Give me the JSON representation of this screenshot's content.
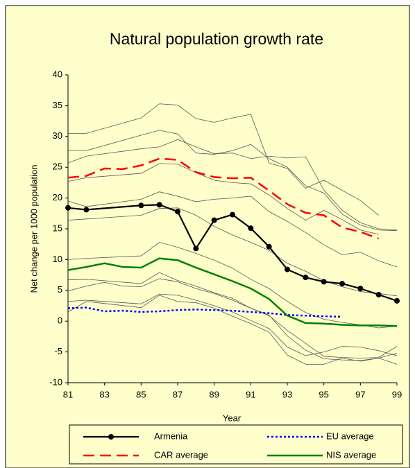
{
  "chart_data": {
    "type": "line",
    "title": "Natural population growth rate",
    "x_label": "Year",
    "y_label": "Net change per 1000 population",
    "xlim": [
      81,
      99
    ],
    "xticks": [
      81,
      83,
      85,
      87,
      89,
      91,
      93,
      95,
      97,
      99
    ],
    "ylim": [
      -10,
      40
    ],
    "yticks": [
      -10,
      -5,
      0,
      5,
      10,
      15,
      20,
      25,
      30,
      35,
      40
    ],
    "grid": false,
    "series": [
      {
        "color": "#555555",
        "width": 0.8,
        "style": "solid",
        "x": [
          81,
          82,
          85,
          86,
          87,
          88,
          89,
          90,
          91,
          92,
          93,
          94,
          95,
          97,
          98
        ],
        "values": [
          30.5,
          30.5,
          33,
          35.3,
          35.1,
          32.9,
          32.3,
          33,
          33.6,
          25.7,
          24.8,
          21.6,
          22.9,
          19.6,
          17.2
        ]
      },
      {
        "color": "#555555",
        "width": 0.8,
        "style": "solid",
        "x": [
          81,
          82,
          85,
          86,
          87,
          88,
          89,
          90,
          91,
          92,
          93,
          94,
          95,
          96,
          97,
          98,
          99
        ],
        "values": [
          27.8,
          27.7,
          30.2,
          31,
          30.4,
          27.3,
          27.1,
          27.7,
          28.7,
          26.4,
          25,
          22,
          20.8,
          17.4,
          15.6,
          14.8,
          14.7
        ]
      },
      {
        "color": "#555555",
        "width": 0.8,
        "style": "solid",
        "x": [
          81,
          82,
          85,
          86,
          87,
          88,
          89,
          90,
          91,
          92,
          93,
          94,
          95,
          96,
          97,
          98,
          99
        ],
        "values": [
          25.7,
          26.8,
          28,
          28.3,
          29.5,
          28.3,
          27.2,
          27.3,
          26.4,
          26.8,
          26.5,
          26.7,
          21.3,
          18,
          16,
          15,
          14.8
        ]
      },
      {
        "color": "#555555",
        "width": 0.8,
        "style": "solid",
        "x": [
          81,
          82,
          85,
          86,
          87,
          88,
          89,
          90,
          91,
          92,
          93,
          94,
          95,
          96,
          97,
          98
        ],
        "values": [
          22.7,
          23.3,
          24,
          25.6,
          25.5,
          24.1,
          22.9,
          22.5,
          22.3,
          20.5,
          18.3,
          16.4,
          18,
          16.5,
          14.8,
          14.1
        ]
      },
      {
        "color": "#555555",
        "width": 0.8,
        "style": "solid",
        "x": [
          81,
          82,
          85,
          86,
          87,
          88,
          89,
          90,
          91,
          92,
          93,
          94,
          95,
          96,
          97,
          98,
          99
        ],
        "values": [
          19.5,
          18.6,
          19.8,
          21,
          20.3,
          19.4,
          19.8,
          20,
          20.3,
          17.8,
          16.2,
          14.4,
          12.4,
          10.8,
          11.2,
          9.8,
          8.8
        ]
      },
      {
        "color": "#555555",
        "width": 0.8,
        "style": "solid",
        "x": [
          81,
          82,
          85,
          86,
          87,
          88,
          89,
          90,
          91,
          92,
          93,
          94,
          95,
          96,
          97,
          98,
          99
        ],
        "values": [
          16.4,
          16.6,
          17.2,
          18.3,
          18.4,
          17.2,
          15.4,
          14,
          12.8,
          11.5,
          9.4,
          8.1,
          6.6,
          5.6,
          4.8,
          4.5,
          4.1
        ]
      },
      {
        "color": "#555555",
        "width": 0.8,
        "style": "solid",
        "x": [
          81,
          82,
          85,
          86,
          87,
          88,
          89,
          90,
          91,
          92,
          93,
          94,
          95,
          96,
          97,
          98,
          99
        ],
        "values": [
          10,
          10.2,
          10.6,
          12.8,
          12,
          11,
          9.9,
          8.6,
          6.8,
          5.3,
          3.2,
          1.4,
          0.3,
          -0.2,
          -0.6,
          -1.1,
          -0.8
        ]
      },
      {
        "color": "#555555",
        "width": 0.8,
        "style": "solid",
        "x": [
          81,
          82,
          85,
          86,
          87,
          88,
          89,
          90,
          91,
          92,
          93,
          94,
          95,
          96,
          97,
          98,
          99
        ],
        "values": [
          6.7,
          6.8,
          6.1,
          7.9,
          6.6,
          5.7,
          4.6,
          3.7,
          2.1,
          0.9,
          -1.5,
          -3.6,
          -5.7,
          -5.9,
          -6,
          -5.9,
          -4.1
        ]
      },
      {
        "color": "#555555",
        "width": 0.8,
        "style": "solid",
        "x": [
          81,
          82,
          83,
          84,
          85,
          86,
          87,
          88,
          89,
          90,
          91,
          92,
          93,
          94,
          95,
          96,
          97,
          98,
          99
        ],
        "values": [
          4.9,
          5.7,
          6.3,
          5.7,
          5.6,
          6.9,
          6.4,
          5.3,
          4.5,
          3.4,
          2.1,
          1,
          -2.4,
          -4.7,
          -6.1,
          -6.3,
          -6.4,
          -6,
          -5.2
        ]
      },
      {
        "color": "#555555",
        "width": 0.8,
        "style": "solid",
        "x": [
          81,
          82,
          85,
          86,
          87,
          88,
          89,
          90,
          91,
          92,
          93,
          94,
          95,
          96,
          97,
          98,
          99
        ],
        "values": [
          3.2,
          3.4,
          2.8,
          4.4,
          4.2,
          3.4,
          2.5,
          1.5,
          0.1,
          -1.2,
          -4.2,
          -5.6,
          -5,
          -4.1,
          -4.2,
          -4.8,
          -5.6
        ]
      },
      {
        "color": "#555555",
        "width": 0.8,
        "style": "solid",
        "x": [
          81,
          82,
          85,
          86,
          87,
          88,
          89,
          90,
          91,
          92,
          93,
          94,
          95,
          96,
          97,
          98,
          99
        ],
        "values": [
          1.5,
          3.2,
          2.2,
          4.2,
          3.2,
          3,
          2.1,
          0.8,
          -0.4,
          -1.8,
          -5.5,
          -7,
          -7,
          -6,
          -6.5,
          -6,
          -7
        ]
      },
      {
        "name": "Armenia",
        "color": "#000000",
        "width": 2.2,
        "style": "solid",
        "marker": "circle",
        "x": [
          81,
          82,
          85,
          86,
          87,
          88,
          89,
          90,
          91,
          92,
          93,
          94,
          95,
          96,
          97,
          98,
          99
        ],
        "values": [
          18.4,
          18.1,
          18.8,
          18.9,
          17.8,
          11.8,
          16.4,
          17.3,
          15.1,
          12.1,
          8.4,
          7.1,
          6.4,
          6.1,
          5.3,
          4.3,
          3.3
        ]
      },
      {
        "name": "EU average",
        "color": "#0000ff",
        "width": 2.5,
        "style": "dotted",
        "x": [
          81,
          82,
          83,
          84,
          85,
          86,
          87,
          88,
          89,
          90,
          91,
          92,
          93,
          94,
          95,
          96
        ],
        "values": [
          2.1,
          2.2,
          1.6,
          1.7,
          1.5,
          1.6,
          1.8,
          1.9,
          1.8,
          1.7,
          1.5,
          1.3,
          1,
          0.9,
          0.8,
          0.7
        ]
      },
      {
        "name": "CAR average",
        "color": "#ff0000",
        "width": 2.5,
        "style": "dashed",
        "x": [
          81,
          82,
          83,
          84,
          85,
          86,
          87,
          88,
          89,
          90,
          91,
          92,
          93,
          94,
          95,
          96,
          97,
          98
        ],
        "values": [
          23.3,
          23.6,
          24.8,
          24.7,
          25.3,
          26.4,
          26.2,
          24.2,
          23.4,
          23.2,
          23.3,
          21.2,
          19,
          17.6,
          17.2,
          15.2,
          14.5,
          13.4
        ]
      },
      {
        "name": "NIS average",
        "color": "#008000",
        "width": 2.5,
        "style": "solid",
        "x": [
          81,
          82,
          83,
          84,
          85,
          86,
          87,
          88,
          89,
          90,
          91,
          92,
          93,
          94,
          95,
          96,
          97,
          98,
          99
        ],
        "values": [
          8.3,
          8.8,
          9.4,
          8.8,
          8.7,
          10.2,
          9.9,
          8.7,
          7.6,
          6.5,
          5.3,
          3.6,
          0.9,
          -0.3,
          -0.4,
          -0.6,
          -0.7,
          -0.7,
          -0.8
        ]
      }
    ]
  }
}
